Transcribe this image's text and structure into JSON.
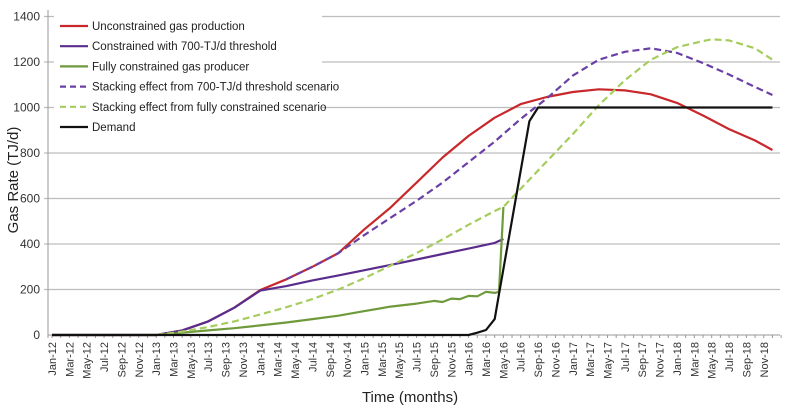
{
  "chart_data": {
    "type": "line",
    "title": "",
    "xlabel": "Time (months)",
    "ylabel": "Gas Rate (TJ/d)",
    "ylim": [
      0,
      1400
    ],
    "yticks": [
      0,
      200,
      400,
      600,
      800,
      1000,
      1200,
      1400
    ],
    "x_unit": "months since Jan-12",
    "xlim": [
      0,
      84
    ],
    "xtick_labels": [
      "Jan-12",
      "Mar-12",
      "May-12",
      "Jul-12",
      "Sep-12",
      "Nov-12",
      "Jan-13",
      "Mar-13",
      "May-13",
      "Jul-13",
      "Sep-13",
      "Nov-13",
      "Jan-14",
      "Mar-14",
      "May-14",
      "Jul-14",
      "Sep-14",
      "Nov-14",
      "Jan-15",
      "Mar-15",
      "May-15",
      "Jul-15",
      "Sep-15",
      "Nov-15",
      "Jan-16",
      "Mar-16",
      "May-16",
      "Jul-16",
      "Sep-16",
      "Nov-16",
      "Jan-17",
      "Mar-17",
      "May-17",
      "Jul-17",
      "Sep-17",
      "Nov-17",
      "Jan-18",
      "Mar-18",
      "May-18",
      "Jul-18",
      "Sep-18",
      "Nov-18"
    ],
    "grid": true,
    "legend_position": "top-left",
    "series": [
      {
        "name": "Unconstrained gas production",
        "color": "#c8282c",
        "dash": false,
        "points": [
          [
            0,
            0
          ],
          [
            12,
            0
          ],
          [
            15,
            20
          ],
          [
            18,
            60
          ],
          [
            21,
            120
          ],
          [
            24,
            198
          ],
          [
            27,
            245
          ],
          [
            30,
            300
          ],
          [
            33,
            360
          ],
          [
            36,
            465
          ],
          [
            39,
            560
          ],
          [
            42,
            670
          ],
          [
            45,
            780
          ],
          [
            48,
            875
          ],
          [
            51,
            955
          ],
          [
            54,
            1015
          ],
          [
            57,
            1046
          ],
          [
            60,
            1068
          ],
          [
            63,
            1080
          ],
          [
            66,
            1075
          ],
          [
            69,
            1058
          ],
          [
            72,
            1020
          ],
          [
            75,
            965
          ],
          [
            78,
            905
          ],
          [
            81,
            855
          ],
          [
            83,
            813
          ]
        ]
      },
      {
        "name": "Constrained with 700-TJ/d threshold",
        "color": "#5a2d8c",
        "dash": false,
        "points": [
          [
            0,
            0
          ],
          [
            12,
            0
          ],
          [
            15,
            20
          ],
          [
            18,
            60
          ],
          [
            21,
            120
          ],
          [
            24,
            195
          ],
          [
            27,
            215
          ],
          [
            30,
            240
          ],
          [
            33,
            262
          ],
          [
            36,
            285
          ],
          [
            39,
            308
          ],
          [
            42,
            332
          ],
          [
            45,
            356
          ],
          [
            48,
            380
          ],
          [
            51,
            405
          ],
          [
            52,
            422
          ]
        ]
      },
      {
        "name": "Fully constrained gas producer",
        "color": "#6f9a3c",
        "dash": false,
        "points": [
          [
            0,
            0
          ],
          [
            12,
            0
          ],
          [
            15,
            10
          ],
          [
            18,
            20
          ],
          [
            21,
            30
          ],
          [
            24,
            42
          ],
          [
            27,
            55
          ],
          [
            30,
            70
          ],
          [
            33,
            85
          ],
          [
            36,
            105
          ],
          [
            39,
            125
          ],
          [
            42,
            138
          ],
          [
            44,
            150
          ],
          [
            45,
            145
          ],
          [
            46,
            160
          ],
          [
            47,
            158
          ],
          [
            48,
            172
          ],
          [
            49,
            170
          ],
          [
            50,
            190
          ],
          [
            51,
            185
          ],
          [
            51.5,
            190
          ],
          [
            52,
            563
          ]
        ]
      },
      {
        "name": "Stacking effect from 700-TJ/d threshold scenario",
        "color": "#6a40a6",
        "dash": true,
        "points": [
          [
            27,
            245
          ],
          [
            30,
            300
          ],
          [
            33,
            360
          ],
          [
            36,
            440
          ],
          [
            39,
            515
          ],
          [
            42,
            590
          ],
          [
            45,
            670
          ],
          [
            48,
            760
          ],
          [
            51,
            850
          ],
          [
            54,
            950
          ],
          [
            57,
            1040
          ],
          [
            60,
            1140
          ],
          [
            63,
            1210
          ],
          [
            66,
            1245
          ],
          [
            69,
            1260
          ],
          [
            72,
            1240
          ],
          [
            75,
            1195
          ],
          [
            78,
            1145
          ],
          [
            81,
            1090
          ],
          [
            83,
            1055
          ]
        ]
      },
      {
        "name": "Stacking effect from fully constrained scenario",
        "color": "#a6cc5e",
        "dash": true,
        "points": [
          [
            12,
            0
          ],
          [
            15,
            15
          ],
          [
            18,
            35
          ],
          [
            21,
            60
          ],
          [
            24,
            90
          ],
          [
            27,
            122
          ],
          [
            30,
            158
          ],
          [
            33,
            200
          ],
          [
            36,
            250
          ],
          [
            39,
            305
          ],
          [
            42,
            360
          ],
          [
            45,
            420
          ],
          [
            48,
            485
          ],
          [
            51,
            545
          ],
          [
            52,
            563
          ],
          [
            54,
            643
          ],
          [
            57,
            763
          ],
          [
            60,
            883
          ],
          [
            63,
            1010
          ],
          [
            66,
            1120
          ],
          [
            69,
            1210
          ],
          [
            72,
            1265
          ],
          [
            75,
            1292
          ],
          [
            76,
            1300
          ],
          [
            78,
            1295
          ],
          [
            81,
            1260
          ],
          [
            83,
            1210
          ]
        ]
      },
      {
        "name": "Demand",
        "color": "#111111",
        "dash": false,
        "points": [
          [
            0,
            0
          ],
          [
            48,
            0
          ],
          [
            49,
            10
          ],
          [
            50,
            22
          ],
          [
            51,
            70
          ],
          [
            51.5,
            180
          ],
          [
            55,
            940
          ],
          [
            56,
            1000
          ],
          [
            83,
            1000
          ]
        ]
      }
    ]
  }
}
